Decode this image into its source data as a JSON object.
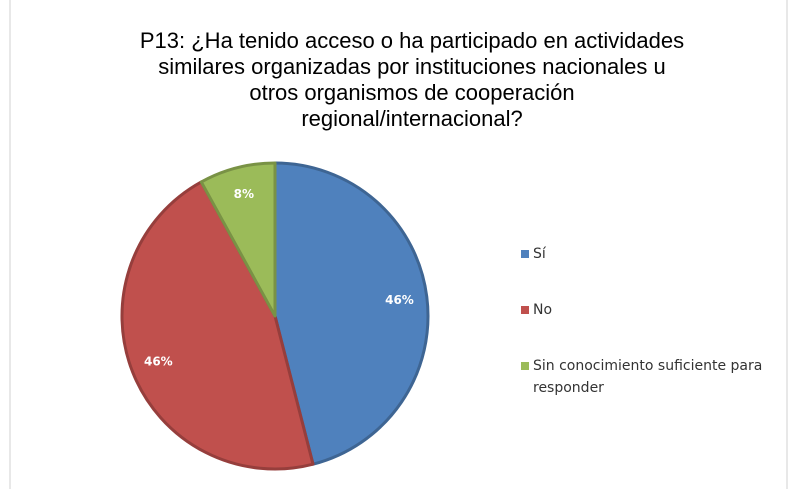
{
  "chart_data": {
    "type": "pie",
    "title": [
      "P13: ¿Ha tenido acceso o ha participado en actividades",
      "similares organizadas por instituciones nacionales u",
      "otros organismos de cooperación",
      "regional/internacional?"
    ],
    "categories": [
      "Sí",
      "No",
      "Sin conocimiento suficiente para responder"
    ],
    "values": [
      46,
      46,
      8
    ],
    "value_labels": [
      "46%",
      "46%",
      "8%"
    ],
    "colors": [
      "#4f81bd",
      "#c0504d",
      "#9bbb59"
    ],
    "legend": "right"
  }
}
